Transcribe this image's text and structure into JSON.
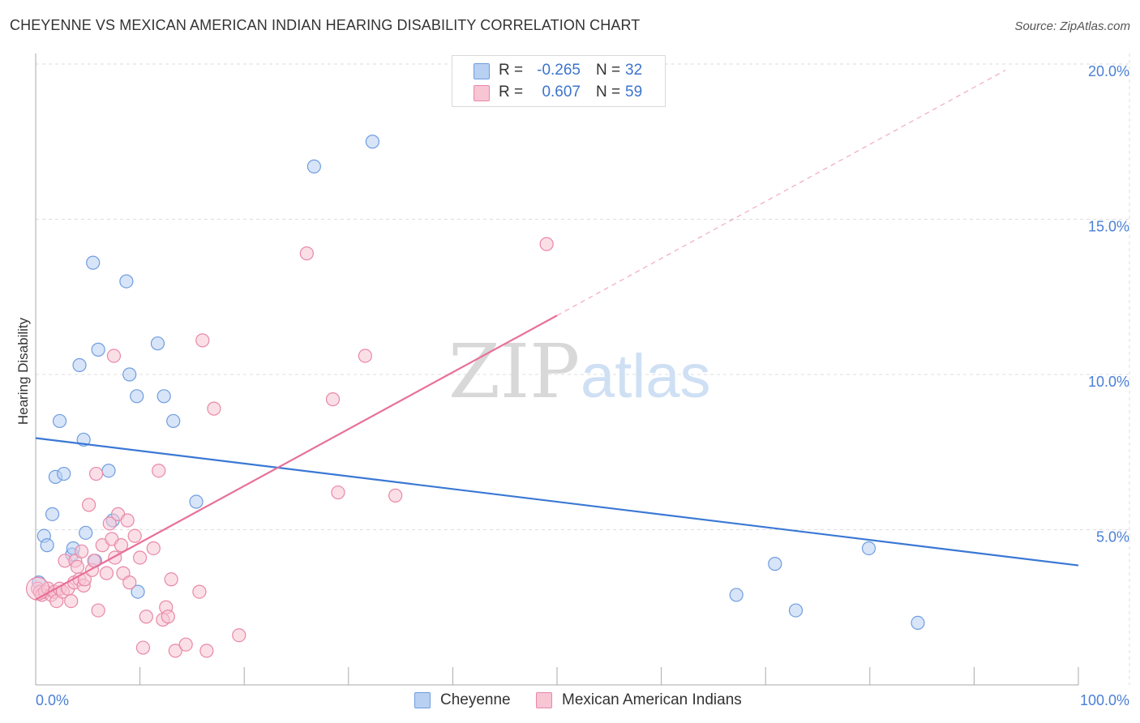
{
  "title": "CHEYENNE VS MEXICAN AMERICAN INDIAN HEARING DISABILITY CORRELATION CHART",
  "source": "Source: ZipAtlas.com",
  "watermark": {
    "zip": "ZIP",
    "atlas": "atlas"
  },
  "legend": {
    "r_label": "R =",
    "n_label": "N =",
    "rows": [
      {
        "name": "Cheyenne",
        "r": "-0.265",
        "n": "32",
        "fill": "#b8d0f2",
        "stroke": "#6f9de0"
      },
      {
        "name": "Mexican American Indians",
        "r": "0.607",
        "n": "59",
        "fill": "#f8c5d4",
        "stroke": "#e888a8"
      }
    ]
  },
  "colors": {
    "blue": "#3a78d4",
    "blue_fill": "#b8d0f2",
    "blue_stroke": "#6f9de0",
    "pink": "#e8709a",
    "pink_fill": "#f8c5d4",
    "pink_stroke": "#e888a8",
    "grid": "#dddddd",
    "axis": "#aaaaaa",
    "tick_label": "#4a7fd4"
  },
  "chart_data": {
    "type": "scatter",
    "title": "CHEYENNE VS MEXICAN AMERICAN INDIAN HEARING DISABILITY CORRELATION CHART",
    "xlabel": "",
    "ylabel": "Hearing Disability",
    "xlim": [
      0,
      100
    ],
    "ylim": [
      0,
      20
    ],
    "x_tick_labels": [
      "0.0%",
      "100.0%"
    ],
    "y_ticks": [
      5,
      10,
      15,
      20
    ],
    "y_tick_labels": [
      "5.0%",
      "10.0%",
      "15.0%",
      "20.0%"
    ],
    "grid": true,
    "legend_position": "top-center",
    "series": [
      {
        "name": "Cheyenne",
        "r": -0.265,
        "n": 32,
        "trend": {
          "x0": 0,
          "y0": 7.95,
          "x1": 100,
          "y1": 3.85
        },
        "points": [
          [
            0.3,
            3.3
          ],
          [
            0.8,
            4.8
          ],
          [
            1.1,
            4.5
          ],
          [
            1.6,
            5.5
          ],
          [
            1.9,
            6.7
          ],
          [
            2.3,
            8.5
          ],
          [
            2.7,
            6.8
          ],
          [
            3.5,
            4.2
          ],
          [
            3.6,
            4.4
          ],
          [
            4.2,
            10.3
          ],
          [
            4.6,
            7.9
          ],
          [
            4.8,
            4.9
          ],
          [
            5.5,
            13.6
          ],
          [
            5.7,
            4.0
          ],
          [
            6.0,
            10.8
          ],
          [
            7.0,
            6.9
          ],
          [
            7.4,
            5.3
          ],
          [
            8.7,
            13.0
          ],
          [
            9.0,
            10.0
          ],
          [
            9.7,
            9.3
          ],
          [
            9.8,
            3.0
          ],
          [
            11.7,
            11.0
          ],
          [
            12.3,
            9.3
          ],
          [
            13.2,
            8.5
          ],
          [
            15.4,
            5.9
          ],
          [
            26.7,
            16.7
          ],
          [
            32.3,
            17.5
          ],
          [
            67.2,
            2.9
          ],
          [
            70.9,
            3.9
          ],
          [
            72.9,
            2.4
          ],
          [
            79.9,
            4.4
          ],
          [
            84.6,
            2.0
          ]
        ]
      },
      {
        "name": "Mexican American Indians",
        "r": 0.607,
        "n": 59,
        "trend": {
          "x0": 0,
          "y0": 2.75,
          "x1": 50,
          "y1": 11.9,
          "dash_x1": 93,
          "dash_y1": 19.8
        },
        "points": [
          [
            0.2,
            3.1
          ],
          [
            0.4,
            3.0
          ],
          [
            0.6,
            2.9
          ],
          [
            0.9,
            3.0
          ],
          [
            1.2,
            3.1
          ],
          [
            1.5,
            2.9
          ],
          [
            1.8,
            3.0
          ],
          [
            2.0,
            2.7
          ],
          [
            2.3,
            3.1
          ],
          [
            2.6,
            3.0
          ],
          [
            2.8,
            4.0
          ],
          [
            3.1,
            3.1
          ],
          [
            3.4,
            2.7
          ],
          [
            3.7,
            3.3
          ],
          [
            3.8,
            4.0
          ],
          [
            4.0,
            3.8
          ],
          [
            4.2,
            3.4
          ],
          [
            4.4,
            4.3
          ],
          [
            4.6,
            3.2
          ],
          [
            4.7,
            3.4
          ],
          [
            5.1,
            5.8
          ],
          [
            5.4,
            3.7
          ],
          [
            5.6,
            4.0
          ],
          [
            5.8,
            6.8
          ],
          [
            6.0,
            2.4
          ],
          [
            6.4,
            4.5
          ],
          [
            6.8,
            3.6
          ],
          [
            7.1,
            5.2
          ],
          [
            7.3,
            4.7
          ],
          [
            7.5,
            10.6
          ],
          [
            7.6,
            4.1
          ],
          [
            7.9,
            5.5
          ],
          [
            8.2,
            4.5
          ],
          [
            8.4,
            3.6
          ],
          [
            8.8,
            5.3
          ],
          [
            9.0,
            3.3
          ],
          [
            9.5,
            4.8
          ],
          [
            10.0,
            4.1
          ],
          [
            10.3,
            1.2
          ],
          [
            10.6,
            2.2
          ],
          [
            11.3,
            4.4
          ],
          [
            11.8,
            6.9
          ],
          [
            12.2,
            2.1
          ],
          [
            12.5,
            2.5
          ],
          [
            12.7,
            2.2
          ],
          [
            13.0,
            3.4
          ],
          [
            13.4,
            1.1
          ],
          [
            14.4,
            1.3
          ],
          [
            15.7,
            3.0
          ],
          [
            16.0,
            11.1
          ],
          [
            16.4,
            1.1
          ],
          [
            17.1,
            8.9
          ],
          [
            19.5,
            1.6
          ],
          [
            26.0,
            13.9
          ],
          [
            28.5,
            9.2
          ],
          [
            29.0,
            6.2
          ],
          [
            31.6,
            10.6
          ],
          [
            34.5,
            6.1
          ],
          [
            49.0,
            14.2
          ]
        ]
      }
    ]
  }
}
